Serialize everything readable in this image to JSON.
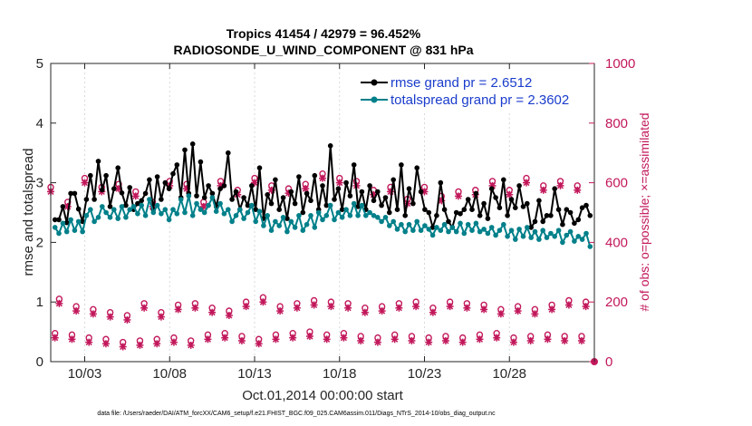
{
  "chart_data": {
    "type": "line",
    "title": "Tropics 41454 / 42979 = 96.452%",
    "subtitle": "RADIOSONDE_U_WIND_COMPONENT @ 831 hPa",
    "xlabel": "Oct.01,2014 00:00:00 start",
    "ylabel": "rmse and totalspread",
    "y2label": "# of obs: o=possible; ×=assimilated",
    "ylim": [
      0,
      5
    ],
    "y2lim": [
      0,
      1000
    ],
    "xlim": [
      1,
      33
    ],
    "yticks": [
      "0",
      "1",
      "2",
      "3",
      "4",
      "5"
    ],
    "y2ticks": [
      "0",
      "200",
      "400",
      "600",
      "800",
      "1000"
    ],
    "xtick_values": [
      3,
      8,
      13,
      18,
      23,
      28
    ],
    "xticks": [
      "10/03",
      "10/08",
      "10/13",
      "10/18",
      "10/23",
      "10/28"
    ],
    "legend_position": "top-right",
    "footnote": "data file: /Users/raeder/DAI/ATM_forcXX/CAM6_setup/f.e21.FHIST_BGC.f09_025.CAM6assim.011/Diags_NTrS_2014-10/obs_diag_output.nc",
    "colors": {
      "rmse": "#000000",
      "spread": "#00808a",
      "obs": "#c2185b",
      "legend_text": "#1a3ccc"
    },
    "series": [
      {
        "name": "rmse grand pr = 2.6512",
        "values": [
          2.38,
          2.38,
          2.6,
          2.33,
          2.82,
          2.82,
          2.56,
          2.35,
          2.72,
          3.12,
          2.72,
          3.36,
          2.88,
          3.12,
          2.6,
          2.9,
          3.25,
          2.83,
          2.62,
          2.92,
          2.55,
          2.65,
          2.7,
          2.82,
          3.05,
          2.55,
          3.1,
          2.72,
          3.0,
          2.9,
          3.15,
          3.3,
          2.75,
          3.55,
          2.82,
          3.65,
          2.78,
          3.35,
          2.75,
          2.95,
          2.82,
          2.6,
          2.9,
          2.95,
          3.5,
          2.72,
          2.85,
          2.55,
          2.75,
          2.62,
          2.95,
          2.55,
          3.25,
          2.4,
          2.8,
          2.65,
          3.05,
          2.55,
          2.75,
          2.4,
          2.85,
          2.65,
          3.1,
          2.5,
          2.82,
          2.7,
          3.12,
          2.55,
          2.95,
          2.62,
          3.62,
          2.72,
          2.9,
          2.55,
          3.0,
          2.78,
          3.3,
          2.6,
          2.85,
          2.55,
          2.95,
          2.7,
          2.85,
          2.62,
          2.75,
          2.5,
          3.05,
          2.55,
          3.3,
          2.45,
          2.9,
          2.65,
          3.25,
          2.85,
          2.55,
          2.5,
          2.25,
          2.45,
          3.0,
          2.55,
          2.35,
          2.25,
          2.5,
          2.48,
          2.55,
          2.72,
          2.55,
          2.82,
          2.45,
          2.65,
          2.4,
          2.9,
          2.75,
          2.58,
          3.05,
          2.45,
          2.72,
          2.58,
          2.95,
          2.6,
          2.65,
          2.25,
          2.35,
          2.7,
          2.35,
          2.45,
          2.45,
          2.9,
          2.55,
          2.3,
          2.55,
          2.5,
          2.32,
          2.38,
          2.58,
          2.62,
          2.45
        ]
      },
      {
        "name": "totalspread grand pr = 2.3602",
        "values": [
          2.25,
          2.15,
          2.32,
          2.18,
          2.38,
          2.2,
          2.35,
          2.18,
          2.45,
          2.55,
          2.35,
          2.42,
          2.6,
          2.5,
          2.42,
          2.55,
          2.4,
          2.6,
          2.42,
          2.55,
          2.6,
          2.48,
          2.62,
          2.45,
          2.72,
          2.5,
          2.62,
          2.48,
          2.55,
          2.38,
          2.55,
          2.48,
          2.72,
          2.5,
          2.78,
          2.45,
          2.65,
          2.55,
          2.5,
          2.62,
          2.75,
          2.52,
          2.65,
          2.48,
          2.55,
          2.35,
          2.45,
          2.55,
          2.4,
          2.5,
          2.62,
          2.35,
          2.52,
          2.28,
          2.45,
          2.2,
          2.35,
          2.28,
          2.42,
          2.18,
          2.35,
          2.25,
          2.45,
          2.2,
          2.3,
          2.45,
          2.25,
          2.5,
          2.38,
          2.45,
          2.62,
          2.38,
          2.5,
          2.42,
          2.55,
          2.45,
          2.65,
          2.45,
          2.62,
          2.45,
          2.5,
          2.45,
          2.42,
          2.35,
          2.42,
          2.28,
          2.35,
          2.22,
          2.3,
          2.18,
          2.3,
          2.2,
          2.35,
          2.2,
          2.28,
          2.22,
          2.12,
          2.25,
          2.2,
          2.3,
          2.18,
          2.25,
          2.18,
          2.32,
          2.15,
          2.3,
          2.2,
          2.32,
          2.18,
          2.22,
          2.15,
          2.25,
          2.12,
          2.2,
          2.3,
          2.1,
          2.2,
          2.05,
          2.22,
          2.1,
          2.25,
          2.08,
          2.18,
          2.05,
          2.2,
          2.08,
          2.15,
          2.1,
          2.2,
          2.0,
          2.12,
          2.18,
          2.02,
          2.1,
          2.05,
          2.15,
          1.93
        ]
      }
    ],
    "obs_counts": {
      "daily_00z": [
        570,
        520,
        600,
        570,
        580,
        555,
        520,
        590,
        580,
        520,
        590,
        560,
        600,
        575,
        565,
        580,
        615,
        600,
        590,
        560,
        570,
        530,
        570,
        540,
        555,
        560,
        590,
        560,
        600,
        575,
        590,
        575
      ],
      "daily_12z": [
        195,
        170,
        160,
        150,
        140,
        180,
        150,
        175,
        180,
        165,
        155,
        185,
        200,
        170,
        180,
        190,
        185,
        180,
        165,
        170,
        180,
        185,
        165,
        185,
        180,
        175,
        160,
        170,
        160,
        175,
        190,
        185
      ],
      "daily_06z": [
        80,
        75,
        65,
        60,
        50,
        55,
        60,
        65,
        55,
        75,
        80,
        70,
        60,
        75,
        80,
        85,
        75,
        80,
        70,
        65,
        75,
        70,
        65,
        70,
        65,
        75,
        80,
        65,
        70,
        75,
        70,
        70
      ],
      "final_point": 0
    }
  }
}
